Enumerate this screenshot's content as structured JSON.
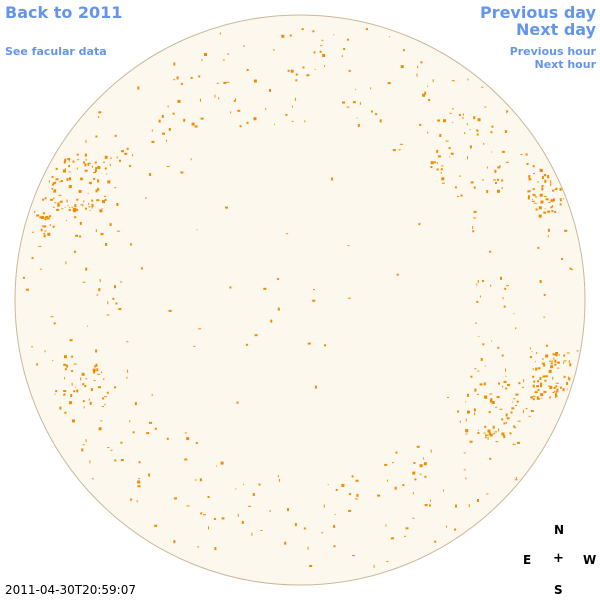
{
  "nav": {
    "back_label": "Back to 2011",
    "facular_label": "See facular data",
    "prev_day_label": "Previous day",
    "next_day_label": "Next day",
    "prev_hour_label": "Previous hour",
    "next_hour_label": "Next hour"
  },
  "compass": {
    "north": "N",
    "south": "S",
    "east": "E",
    "west": "W",
    "center": "+"
  },
  "timestamp": "2011-04-30T20:59:07",
  "colors": {
    "link": "#6495ed",
    "disk_fill": "#fdf8ee",
    "disk_edge": "#c8b89a",
    "speckle": "#f08c00"
  }
}
